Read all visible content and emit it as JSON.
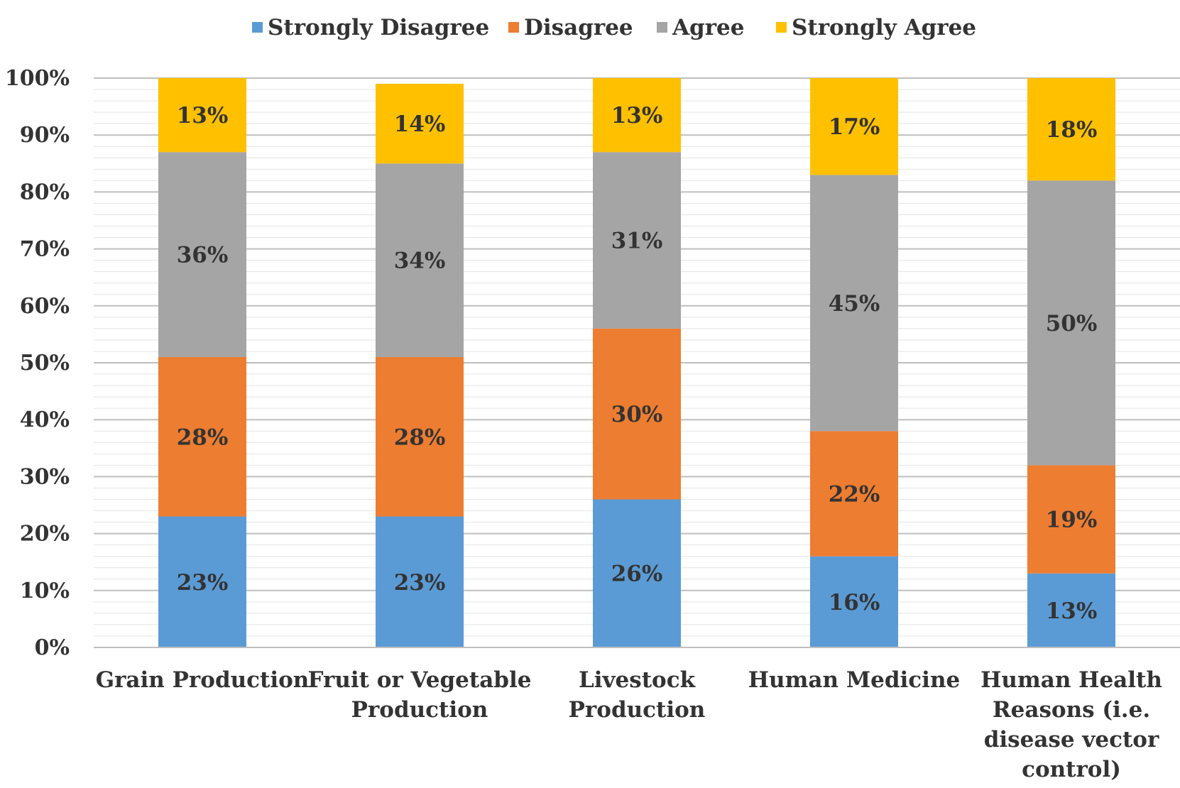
{
  "chart_data": {
    "type": "bar",
    "stacked": true,
    "percent_stacked": true,
    "categories": [
      "Grain Production",
      "Fruit or Vegetable Production",
      "Livestock Production",
      "Human Medicine",
      "Human Health Reasons (i.e. disease vector control)"
    ],
    "category_lines": [
      [
        "Grain Production"
      ],
      [
        "Fruit or Vegetable",
        "Production"
      ],
      [
        "Livestock",
        "Production"
      ],
      [
        "Human Medicine"
      ],
      [
        "Human Health",
        "Reasons (i.e.",
        "disease vector",
        "control)"
      ]
    ],
    "series": [
      {
        "name": "Strongly Disagree",
        "color": "#5B9BD5",
        "values": [
          23,
          23,
          26,
          16,
          13
        ],
        "labels": [
          "23%",
          "23%",
          "26%",
          "16%",
          "13%"
        ]
      },
      {
        "name": "Disagree",
        "color": "#ED7D31",
        "values": [
          28,
          28,
          30,
          22,
          19
        ],
        "labels": [
          "28%",
          "28%",
          "30%",
          "22%",
          "19%"
        ]
      },
      {
        "name": "Agree",
        "color": "#A5A5A5",
        "values": [
          36,
          34,
          31,
          45,
          50
        ],
        "labels": [
          "36%",
          "34%",
          "31%",
          "45%",
          "50%"
        ]
      },
      {
        "name": "Strongly Agree",
        "color": "#FFC000",
        "values": [
          13,
          14,
          13,
          17,
          18
        ],
        "labels": [
          "13%",
          "14%",
          "13%",
          "17%",
          "18%"
        ]
      }
    ],
    "ylim": [
      0,
      100
    ],
    "yticks": [
      "0%",
      "10%",
      "20%",
      "30%",
      "40%",
      "50%",
      "60%",
      "70%",
      "80%",
      "90%",
      "100%"
    ],
    "grid": true,
    "legend": "top"
  }
}
